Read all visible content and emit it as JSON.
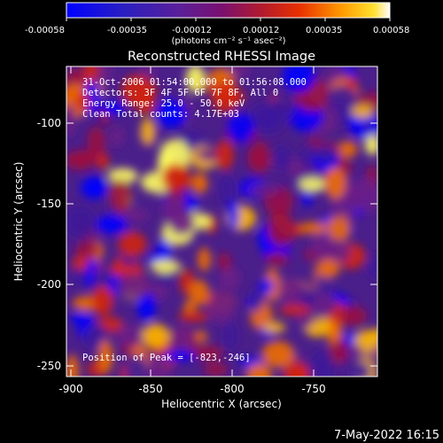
{
  "colorbar": {
    "tick_labels": [
      "-0.00058",
      "-0.00035",
      "-0.00012",
      "0.00012",
      "0.00035",
      "0.00058"
    ],
    "units": "(photons cm⁻² s⁻¹ asec⁻²)",
    "range": [
      -0.00058,
      0.00058
    ]
  },
  "title": "Reconstructed RHESSI Image",
  "annotations": {
    "time_range": "31-Oct-2006 01:54:00.000 to 01:56:08.000",
    "detectors": "Detectors: 3F 4F 5F 6F 7F 8F, All 0",
    "energy_range": "Energy Range: 25.0 - 50.0 keV",
    "clean_counts": "Clean    Total counts: 4.17E+03",
    "peak": "Position of Peak = [-823,-246]"
  },
  "x_axis": {
    "label": "Heliocentric X (arcsec)",
    "ticks": [
      "-900",
      "-850",
      "-800",
      "-750"
    ],
    "range": [
      -903,
      -718
    ]
  },
  "y_axis": {
    "label": "Heliocentric Y (arcsec)",
    "ticks": [
      "-100",
      "-150",
      "-200",
      "-250"
    ],
    "range": [
      -255,
      -70
    ]
  },
  "timestamp": "7-May-2022 16:15",
  "colors": {
    "background": "#000000",
    "colormap": [
      "#0000ff",
      "#3d1a9a",
      "#6b1f86",
      "#9a1240",
      "#d0220a",
      "#f06f00",
      "#fbb700",
      "#ffff60"
    ]
  }
}
